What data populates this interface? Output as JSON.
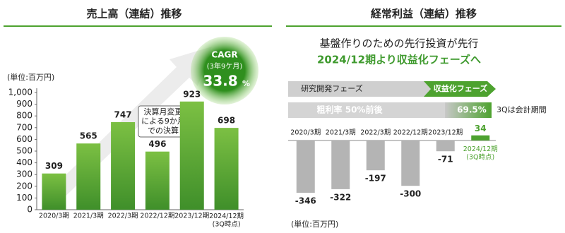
{
  "chart_data": [
    {
      "type": "bar",
      "title": "売上高（連結）推移",
      "unit_label": "(単位:百万円)",
      "categories": [
        "2020/3期",
        "2021/3期",
        "2022/3期",
        "2022/12期",
        "2023/12期",
        "2024/12期\n(3Q時点)"
      ],
      "values": [
        309,
        565,
        747,
        496,
        923,
        698
      ],
      "color": "#4da22f",
      "ylim": [
        0,
        1000
      ],
      "yticks": [
        0,
        100,
        200,
        300,
        400,
        500,
        600,
        700,
        800,
        900,
        {
          "value": 1000,
          "label": "1,000"
        }
      ],
      "annotation": "決算月変更\nによる9か月\nでの決算",
      "cagr_title": "CAGR",
      "cagr_period": "(3年9ケ月)",
      "cagr_value": "33.8",
      "cagr_unit": "%"
    },
    {
      "type": "bar",
      "title": "経常利益（連結）推移",
      "unit_label": "(単位:百万円)",
      "headline": [
        "基盤作りのための先行投資が先行",
        "2024/12期より収益化フェーズへ"
      ],
      "phases": [
        "研究開発フェーズ",
        "収益化フェーズ"
      ],
      "margin_label": "粗利率 50%前後",
      "margin_value": "69.5%",
      "margin_note": "3Qは会計期間",
      "categories": [
        "2020/3期",
        "2021/3期",
        "2022/3期",
        "2022/12期",
        "2023/12期",
        "2024/12期\n(3Q時点)"
      ],
      "values": [
        -346,
        -322,
        -197,
        -300,
        -71,
        34
      ],
      "color": "#b4b4b4",
      "highlight_color": "#4da22f"
    }
  ]
}
